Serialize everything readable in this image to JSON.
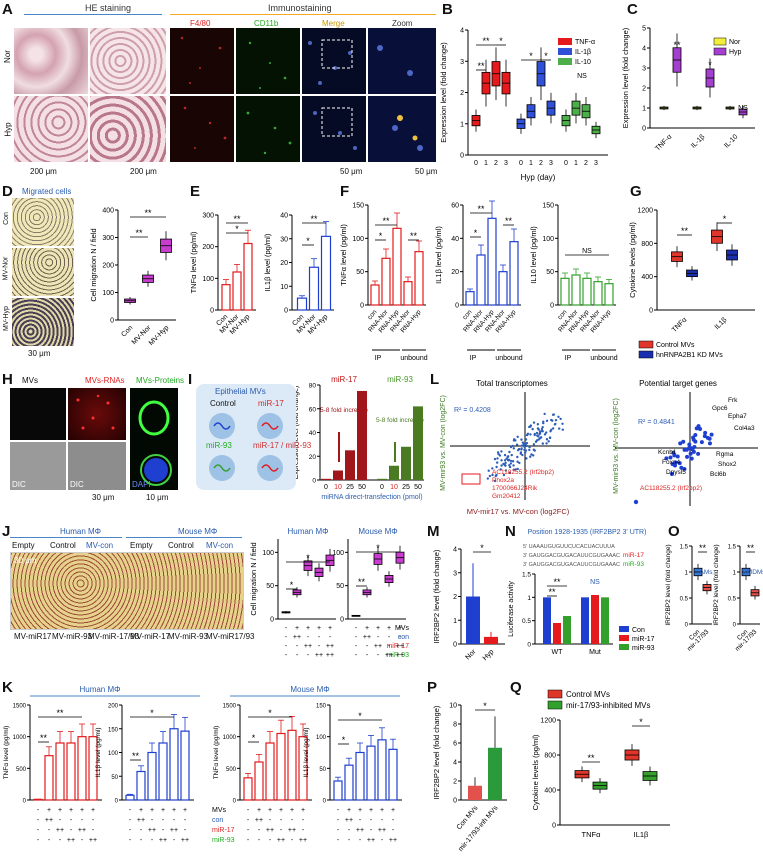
{
  "panels": {
    "A": {
      "label": "A",
      "he_title": "HE staining",
      "immuno_title": "Immunostaining",
      "channels": [
        "F4/80",
        "CD11b",
        "Merge",
        "Zoom"
      ],
      "rows": [
        "Nor",
        "Hyp"
      ],
      "scale_he": [
        "200 μm",
        "200 μm"
      ],
      "scale_immuno": [
        "50 μm",
        "50 μm"
      ]
    },
    "B": {
      "label": "B",
      "xlabel": "Hyp (day)",
      "ylabel": "Expression level (fold change)",
      "ns": "NS",
      "legend": [
        {
          "name": "TNF-α",
          "color": "#e41a1c"
        },
        {
          "name": "IL-1β",
          "color": "#3050d8"
        },
        {
          "name": "IL-10",
          "color": "#4daf4a"
        }
      ]
    },
    "C": {
      "label": "C",
      "ylabel": "Expression level (fold change)",
      "ns": "NS",
      "legend": [
        {
          "name": "Nor",
          "color": "#f2ef3a"
        },
        {
          "name": "Hyp",
          "color": "#a43fd0"
        }
      ],
      "xticks": [
        "TNF-α",
        "IL-1β",
        "IL-10"
      ]
    },
    "D": {
      "label": "D",
      "title": "Migrated cells",
      "rows": [
        "Con",
        "MV-Nor",
        "MV-Hyp"
      ],
      "ylabel": "Cell migration N / field",
      "xticks": [
        "Con",
        "MV-Nor",
        "MV-Hyp"
      ],
      "scale": "30 μm"
    },
    "E": {
      "label": "E",
      "ylabel1": "TNFα level (pg/ml)",
      "ylabel2": "IL1β level (pg/ml)",
      "xticks": [
        "Con",
        "MV-Nor",
        "MV-Hyp"
      ]
    },
    "F": {
      "label": "F",
      "ylabel1": "TNFα level (pg/ml)",
      "ylabel2": "IL1β level (pg/ml)",
      "ylabel3": "IL10 level (pg/ml)",
      "xticks": [
        "con",
        "RNA-Nor",
        "RNA-Hyp",
        "RNA-Nor",
        "RNA-Hyp"
      ],
      "groups": [
        "IP",
        "unbound"
      ],
      "ns": "NS"
    },
    "G": {
      "label": "G",
      "ylabel": "Cytokine levels (pg/ml)",
      "xticks": [
        "TNFα",
        "IL1β"
      ],
      "legend": [
        {
          "name": "Control MVs",
          "color": "#e0352b"
        },
        {
          "name": "hnRNPA2B1 KD MVs",
          "color": "#1a2fb0"
        }
      ]
    },
    "H": {
      "label": "H",
      "titles": [
        "MVs",
        "MVs-RNAs",
        "MVs-Proteins"
      ],
      "bottom": [
        "DIC",
        "DIC",
        "DAPI"
      ],
      "scale": [
        "30 μm",
        "10 μm"
      ]
    },
    "I": {
      "label": "I",
      "title": "Epithelial MVs",
      "cells": [
        "Control",
        "miR-17",
        "miR-93",
        "miR-17 / miR-93"
      ],
      "ylabel": "Expression level (fold change)",
      "xlabel": "miRNA direct-transfection (pmol)",
      "series": [
        "miR-17",
        "miR-93"
      ],
      "note": "5-8 fold increase",
      "xticks": [
        "0",
        "10",
        "25",
        "50"
      ]
    },
    "L": {
      "label": "L",
      "title1": "Total transcriptomes",
      "title2": "Potential target genes",
      "r2a": "R² = 0.4208",
      "r2b": "R² = 0.4841",
      "xlabel": "MV-mir17 vs. MV-con (log2FC)",
      "ylabel": "MV-mir93 vs. MV-con (log2FC)",
      "genes_a": [
        "AC118255.2 (Irf2bp2)",
        "Phox2a",
        "1700066J24Rik",
        "Gm20412"
      ],
      "genes_b": [
        "Frk",
        "Gpc6",
        "Epha7",
        "Col4a3",
        "Rgma",
        "Shox2",
        "Bcl6b",
        "Kcnb1",
        "Foxn4",
        "Dpysl5",
        "AC118255.2 (Irf2bp2)"
      ]
    },
    "J": {
      "label": "J",
      "human": "Human MΦ",
      "mouse": "Mouse MΦ",
      "cols": [
        "Empty",
        "Control",
        "MV-con",
        "Empty",
        "Control",
        "MV-con"
      ],
      "bottom": [
        "MV-miR17",
        "MV-miR-93",
        "MV-miR-17/93",
        "MV-miR-17",
        "MV-miR-93",
        "MV-miR17/93"
      ],
      "scale": "30 μm",
      "ylabel": "Cell migration N / field",
      "rows": [
        "MVs",
        "con",
        "miR-17",
        "miR-93"
      ]
    },
    "M": {
      "label": "M",
      "ylabel": "IRF2BP2 level (fold change)",
      "xticks": [
        "Nor",
        "Hyp"
      ]
    },
    "N": {
      "label": "N",
      "title": "Position 1928-1935 (IRF2BP2 3' UTR)",
      "seqs": [
        "5' UAAAUGUGUUCUCACUACUUUA",
        "3' GAUGGACGUGACAUUCGUGAAAC",
        "3' GAUGGACGUGACAUUCGUGAAAC"
      ],
      "mirs": [
        "miR-17",
        "miR-93"
      ],
      "ylabel": "Luciferase activity",
      "xticks": [
        "WT",
        "Mut"
      ],
      "ns": "NS",
      "legend": [
        {
          "name": "Con",
          "color": "#1f3fd0"
        },
        {
          "name": "miR-17",
          "color": "#e41a1c"
        },
        {
          "name": "miR-93",
          "color": "#33a02c"
        }
      ]
    },
    "O": {
      "label": "O",
      "ylabel": "IRF2BP2 level (fold change)",
      "labels": [
        "AMs",
        "BMDMs"
      ],
      "xticks": [
        "Con",
        "mir-17/93"
      ]
    },
    "K": {
      "label": "K",
      "human": "Human MΦ",
      "mouse": "Mouse MΦ",
      "ylabel1": "TNFα level (pg/ml)",
      "ylabel2": "IL1β level (pg/ml)",
      "rows": [
        "MVs",
        "con",
        "miR-17",
        "miR-93"
      ]
    },
    "P": {
      "label": "P",
      "ylabel": "IRF2BP2 level (fold change)",
      "xticks": [
        "Con MVs",
        "mir-17/93-inh MVs"
      ]
    },
    "Q": {
      "label": "Q",
      "ylabel": "Cytokine levels (pg/ml)",
      "xticks": [
        "TNFα",
        "IL1β"
      ],
      "legend": [
        {
          "name": "Control MVs",
          "color": "#e0352b"
        },
        {
          "name": "mir-17/93-inhibited MVs",
          "color": "#33a02c"
        }
      ]
    }
  },
  "chart_data": [
    {
      "panel": "B",
      "type": "box",
      "ylim": [
        0,
        4
      ],
      "yticks": [
        0,
        1,
        2,
        3,
        4
      ],
      "categories": [
        "0",
        "1",
        "2",
        "3"
      ],
      "series": [
        {
          "name": "TNF-α",
          "values": [
            1.1,
            2.3,
            2.6,
            2.3
          ]
        },
        {
          "name": "IL-1β",
          "values": [
            1.0,
            1.4,
            2.6,
            1.5
          ]
        },
        {
          "name": "IL-10",
          "values": [
            1.1,
            1.5,
            1.4,
            0.8
          ]
        }
      ]
    },
    {
      "panel": "C",
      "type": "box",
      "ylim": [
        0,
        5
      ],
      "yticks": [
        0,
        1,
        2,
        3,
        4,
        5
      ],
      "categories": [
        "TNF-α",
        "IL-1β",
        "IL-10"
      ],
      "series": [
        {
          "name": "Nor",
          "values": [
            1.0,
            1.0,
            1.0
          ]
        },
        {
          "name": "Hyp",
          "values": [
            3.4,
            2.5,
            0.8
          ]
        }
      ]
    },
    {
      "panel": "D",
      "type": "box",
      "ylim": [
        0,
        400
      ],
      "yticks": [
        0,
        100,
        200,
        300,
        400
      ],
      "categories": [
        "Con",
        "MV-Nor",
        "MV-Hyp"
      ],
      "values": [
        70,
        150,
        270
      ]
    },
    {
      "panel": "E",
      "type": "bar",
      "ylim": [
        0,
        300
      ],
      "yticks": [
        0,
        100,
        200,
        300
      ],
      "categories": [
        "Con",
        "MV-Nor",
        "MV-Hyp"
      ],
      "values": [
        80,
        120,
        210
      ]
    },
    {
      "panel": "E2",
      "type": "bar",
      "ylim": [
        0,
        40
      ],
      "yticks": [
        0,
        10,
        20,
        30,
        40
      ],
      "categories": [
        "Con",
        "MV-Nor",
        "MV-Hyp"
      ],
      "values": [
        5,
        18,
        31
      ]
    },
    {
      "panel": "G",
      "type": "box",
      "ylim": [
        0,
        1200
      ],
      "yticks": [
        0,
        400,
        800,
        1200
      ],
      "categories": [
        "TNFα",
        "IL1β"
      ],
      "series": [
        {
          "name": "Control MVs",
          "values": [
            640,
            880
          ]
        },
        {
          "name": "hnRNPA2B1 KD MVs",
          "values": [
            440,
            660
          ]
        }
      ]
    },
    {
      "panel": "I",
      "type": "bar",
      "ylim": [
        0,
        80
      ],
      "yticks": [
        0,
        20,
        40,
        60,
        80
      ],
      "categories": [
        "0",
        "10",
        "25",
        "50"
      ],
      "series": [
        {
          "name": "miR-17",
          "values": [
            1,
            8,
            25,
            75
          ]
        },
        {
          "name": "miR-93",
          "values": [
            1,
            12,
            28,
            62
          ]
        }
      ]
    },
    {
      "panel": "M",
      "type": "bar",
      "ylim": [
        0,
        4
      ],
      "yticks": [
        0,
        1,
        2,
        3,
        4
      ],
      "categories": [
        "Nor",
        "Hyp"
      ],
      "values": [
        2.0,
        0.3
      ]
    },
    {
      "panel": "N",
      "type": "bar",
      "ylim": [
        0,
        1.5
      ],
      "yticks": [
        0,
        0.5,
        1.0,
        1.5
      ],
      "categories": [
        "WT",
        "Mut"
      ],
      "series": [
        {
          "name": "Con",
          "values": [
            1.0,
            1.0
          ]
        },
        {
          "name": "miR-17",
          "values": [
            0.45,
            1.05
          ]
        },
        {
          "name": "miR-93",
          "values": [
            0.6,
            1.0
          ]
        }
      ]
    },
    {
      "panel": "P",
      "type": "bar",
      "ylim": [
        0,
        10
      ],
      "yticks": [
        0,
        2,
        4,
        6,
        8,
        10
      ],
      "categories": [
        "Con MVs",
        "mir-17/93-inh MVs"
      ],
      "values": [
        1.5,
        5.5
      ]
    },
    {
      "panel": "Q",
      "type": "box",
      "ylim": [
        0,
        1200
      ],
      "yticks": [
        0,
        400,
        800,
        1200
      ],
      "categories": [
        "TNFα",
        "IL1β"
      ],
      "series": [
        {
          "name": "Control MVs",
          "values": [
            580,
            800
          ]
        },
        {
          "name": "mir-17/93-inhibited MVs",
          "values": [
            450,
            560
          ]
        }
      ]
    }
  ],
  "colors": {
    "accent_blue": "#4a86c5",
    "orange": "#f0a928",
    "red": "#e41a1c",
    "blue": "#1f3fd0",
    "green": "#33a02c",
    "purple": "#a43fd0",
    "magenta": "#c83ccf"
  }
}
